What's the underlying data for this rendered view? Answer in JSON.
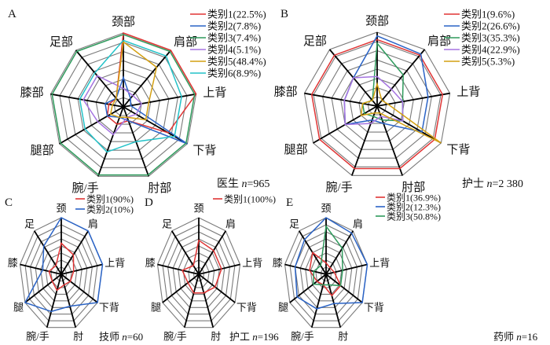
{
  "colors": {
    "red": "#e03535",
    "blue": "#2a63c6",
    "green": "#2e9a5c",
    "purple": "#a574e0",
    "gold": "#d4a012",
    "cyan": "#22c2c8",
    "grid": "#7a7a7a",
    "axis": "#000000"
  },
  "chart_data": [
    {
      "type": "radar",
      "panel": "A",
      "footnote_prefix": "医生 ",
      "footnote_n": "n",
      "footnote_value": "=965",
      "axes": [
        "颈部",
        "肩部",
        "上背",
        "下背",
        "肘部",
        "腕/手",
        "腿部",
        "膝部",
        "足部"
      ],
      "range": [
        0,
        1
      ],
      "rings": 8,
      "series": [
        {
          "name": "类别1(22.5%)",
          "color": "red",
          "values": [
            1.0,
            1.0,
            1.0,
            0.7,
            0.2,
            0.25,
            0.25,
            0.2,
            0.15
          ]
        },
        {
          "name": "类别2(7.8%)",
          "color": "blue",
          "values": [
            0.4,
            0.15,
            0.1,
            1.0,
            0.2,
            0.15,
            0.25,
            0.25,
            0.15
          ]
        },
        {
          "name": "类别3(7.4%)",
          "color": "green",
          "values": [
            0.98,
            0.98,
            0.98,
            0.98,
            0.98,
            0.98,
            0.98,
            0.98,
            0.98
          ]
        },
        {
          "name": "类别4(5.1%)",
          "color": "purple",
          "values": [
            0.25,
            0.2,
            0.25,
            0.2,
            0.15,
            0.4,
            0.4,
            0.55,
            0.55
          ]
        },
        {
          "name": "类别5(48.4%)",
          "color": "gold",
          "values": [
            0.88,
            0.7,
            0.35,
            0.35,
            0.15,
            0.15,
            0.2,
            0.15,
            0.15
          ]
        },
        {
          "name": "类别6(8.9%)",
          "color": "cyan",
          "values": [
            0.9,
            0.9,
            0.8,
            0.8,
            0.5,
            0.65,
            0.6,
            0.6,
            0.6
          ]
        }
      ]
    },
    {
      "type": "radar",
      "panel": "B",
      "footnote_prefix": "护士 ",
      "footnote_n": "n",
      "footnote_value": "=2 380",
      "axes": [
        "颈部",
        "肩部",
        "上背",
        "下背",
        "肘部",
        "腕/手",
        "腿部",
        "膝部",
        "足部"
      ],
      "range": [
        0,
        1
      ],
      "rings": 8,
      "series": [
        {
          "name": "类别1(9.6%)",
          "color": "red",
          "values": [
            0.9,
            0.9,
            0.9,
            0.9,
            0.9,
            0.9,
            0.9,
            0.9,
            0.9
          ]
        },
        {
          "name": "类别2(26.6%)",
          "color": "blue",
          "values": [
            0.95,
            0.92,
            0.7,
            0.7,
            0.25,
            0.2,
            0.5,
            0.45,
            0.5
          ]
        },
        {
          "name": "类别3(35.3%)",
          "color": "green",
          "values": [
            0.85,
            0.55,
            0.35,
            0.4,
            0.2,
            0.15,
            0.2,
            0.2,
            0.1
          ]
        },
        {
          "name": "类别4(22.9%)",
          "color": "purple",
          "values": [
            0.4,
            0.3,
            0.35,
            0.4,
            0.15,
            0.25,
            0.5,
            0.45,
            0.5
          ]
        },
        {
          "name": "类别5(5.3%)",
          "color": "gold",
          "values": [
            0.3,
            0.1,
            0.15,
            1.0,
            0.1,
            0.1,
            0.25,
            0.2,
            0.1
          ]
        }
      ]
    },
    {
      "type": "radar",
      "panel": "C",
      "footnote_prefix": "技师 ",
      "footnote_n": "n",
      "footnote_value": "=60",
      "axes": [
        "颈",
        "肩",
        "上背",
        "下背",
        "肘",
        "腕/手",
        "腿",
        "膝",
        "足"
      ],
      "range": [
        0,
        1
      ],
      "rings": 8,
      "series": [
        {
          "name": "类别1(90%)",
          "color": "red",
          "values": [
            0.55,
            0.45,
            0.3,
            0.25,
            0.2,
            0.3,
            0.25,
            0.3,
            0.2
          ]
        },
        {
          "name": "类别2(10%)",
          "color": "blue",
          "values": [
            1.0,
            1.0,
            1.0,
            1.0,
            0.6,
            0.7,
            1.0,
            0.45,
            0.65
          ]
        }
      ]
    },
    {
      "type": "radar",
      "panel": "D",
      "footnote_prefix": "护工 ",
      "footnote_n": "n",
      "footnote_value": "=196",
      "axes": [
        "颈",
        "肩",
        "上背",
        "下背",
        "肘",
        "腕/手",
        "腿",
        "膝",
        "足"
      ],
      "range": [
        0,
        1
      ],
      "rings": 8,
      "series": [
        {
          "name": "类别1(100%)",
          "color": "red",
          "values": [
            0.6,
            0.55,
            0.55,
            0.45,
            0.35,
            0.35,
            0.3,
            0.4,
            0.2
          ]
        }
      ]
    },
    {
      "type": "radar",
      "panel": "E",
      "footnote_prefix": "药师 ",
      "footnote_n": "n",
      "footnote_value": "=16",
      "axes": [
        "颈",
        "肩",
        "上背",
        "下背",
        "肘",
        "腕/手",
        "腿",
        "膝",
        "足"
      ],
      "range": [
        0,
        1
      ],
      "rings": 8,
      "series": [
        {
          "name": "类别1(36.9%)",
          "color": "red",
          "values": [
            0.2,
            0.15,
            0.2,
            0.4,
            0.4,
            0.2,
            0.25,
            0.4,
            0.5
          ]
        },
        {
          "name": "类别2(12.3%)",
          "color": "blue",
          "values": [
            1.0,
            0.95,
            1.0,
            1.0,
            0.55,
            0.65,
            0.8,
            0.75,
            0.8
          ]
        },
        {
          "name": "类别3(50.8%)",
          "color": "green",
          "values": [
            0.85,
            0.6,
            0.4,
            0.4,
            0.2,
            0.2,
            0.35,
            0.3,
            0.2
          ]
        }
      ]
    }
  ]
}
